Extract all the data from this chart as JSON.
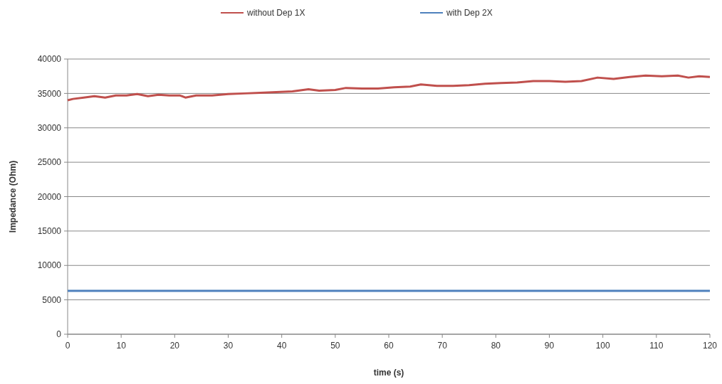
{
  "chart_data": {
    "type": "line",
    "xlabel": "time (s)",
    "ylabel": "Impedance (Ohm)",
    "xlim": [
      0,
      120
    ],
    "ylim": [
      0,
      40000
    ],
    "xticks": [
      0,
      10,
      20,
      30,
      40,
      50,
      60,
      70,
      80,
      90,
      100,
      110,
      120
    ],
    "yticks": [
      0,
      5000,
      10000,
      15000,
      20000,
      25000,
      30000,
      35000,
      40000
    ],
    "grid": "y",
    "legend": "top",
    "marker": "none",
    "series": [
      {
        "name": "without Dep 1X",
        "color": "#c0504d",
        "x": [
          0,
          1,
          3,
          5,
          7,
          9,
          11,
          13,
          15,
          17,
          19,
          21,
          22,
          24,
          27,
          30,
          33,
          36,
          39,
          42,
          45,
          47,
          50,
          52,
          55,
          58,
          61,
          64,
          66,
          69,
          72,
          75,
          78,
          81,
          84,
          87,
          90,
          93,
          96,
          99,
          102,
          105,
          108,
          111,
          114,
          116,
          118,
          120
        ],
        "values": [
          34000,
          34200,
          34400,
          34600,
          34400,
          34700,
          34700,
          34900,
          34600,
          34800,
          34700,
          34700,
          34400,
          34700,
          34700,
          34900,
          35000,
          35100,
          35200,
          35300,
          35600,
          35400,
          35500,
          35800,
          35700,
          35700,
          35900,
          36000,
          36300,
          36100,
          36100,
          36200,
          36400,
          36500,
          36600,
          36800,
          36800,
          36700,
          36800,
          37300,
          37100,
          37400,
          37600,
          37500,
          37600,
          37300,
          37500,
          37400
        ]
      },
      {
        "name": "with Dep 2X",
        "color": "#4f81bd",
        "x": [
          0,
          120
        ],
        "values": [
          6300,
          6300
        ]
      }
    ]
  }
}
